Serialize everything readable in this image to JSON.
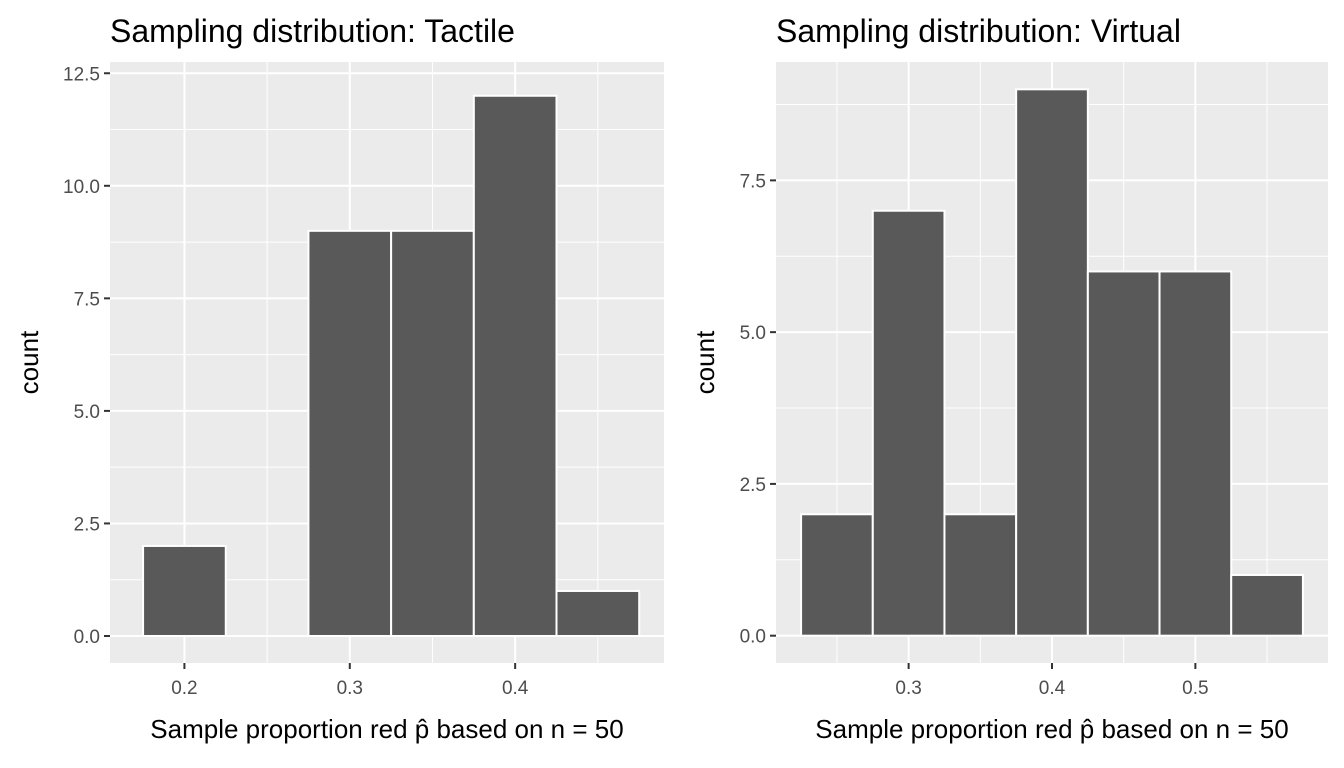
{
  "chart_data": [
    {
      "type": "bar",
      "subtype": "histogram",
      "title": "Sampling distribution: Tactile",
      "xlabel": "Sample proportion red p̂ based on n = 50",
      "ylabel": "count",
      "xlim": [
        0.155,
        0.49
      ],
      "ylim": [
        -0.6,
        12.75
      ],
      "xticks": [
        0.2,
        0.3,
        0.4
      ],
      "xtick_labels": [
        "0.2",
        "0.3",
        "0.4"
      ],
      "yticks": [
        0,
        2.5,
        5,
        7.5,
        10,
        12.5
      ],
      "ytick_labels": [
        "0.0",
        "2.5",
        "5.0",
        "7.5",
        "10.0",
        "12.5"
      ],
      "grid": true,
      "bins": [
        {
          "x0": 0.175,
          "x1": 0.225,
          "count": 2
        },
        {
          "x0": 0.225,
          "x1": 0.275,
          "count": 0
        },
        {
          "x0": 0.275,
          "x1": 0.325,
          "count": 9
        },
        {
          "x0": 0.325,
          "x1": 0.375,
          "count": 9
        },
        {
          "x0": 0.375,
          "x1": 0.425,
          "count": 12
        },
        {
          "x0": 0.425,
          "x1": 0.475,
          "count": 1
        }
      ],
      "bar_color": "#595959",
      "bar_edge_color": "#ffffff",
      "panel_color": "#ebebeb"
    },
    {
      "type": "bar",
      "subtype": "histogram",
      "title": "Sampling distribution: Virtual",
      "xlabel": "Sample proportion red p̂ based on n = 50",
      "ylabel": "count",
      "xlim": [
        0.2075,
        0.5925
      ],
      "ylim": [
        -0.45,
        9.45
      ],
      "xticks": [
        0.3,
        0.4,
        0.5
      ],
      "xtick_labels": [
        "0.3",
        "0.4",
        "0.5"
      ],
      "yticks": [
        0,
        2.5,
        5,
        7.5
      ],
      "ytick_labels": [
        "0.0",
        "2.5",
        "5.0",
        "7.5"
      ],
      "grid": true,
      "bins": [
        {
          "x0": 0.225,
          "x1": 0.275,
          "count": 2
        },
        {
          "x0": 0.275,
          "x1": 0.325,
          "count": 7
        },
        {
          "x0": 0.325,
          "x1": 0.375,
          "count": 2
        },
        {
          "x0": 0.375,
          "x1": 0.425,
          "count": 9
        },
        {
          "x0": 0.425,
          "x1": 0.475,
          "count": 6
        },
        {
          "x0": 0.475,
          "x1": 0.525,
          "count": 6
        },
        {
          "x0": 0.525,
          "x1": 0.575,
          "count": 1
        }
      ],
      "bar_color": "#595959",
      "bar_edge_color": "#ffffff",
      "panel_color": "#ebebeb"
    }
  ]
}
